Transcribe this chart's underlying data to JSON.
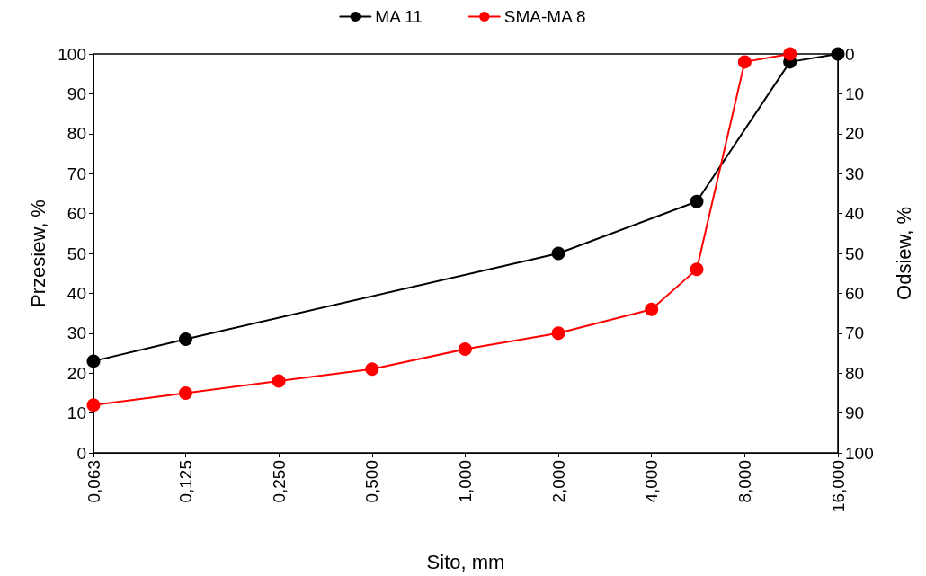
{
  "chart_data": {
    "type": "line",
    "xlabel": "Sito, mm",
    "ylabel": "Przesiew, %",
    "y2label": "Odsiew, %",
    "log": "x",
    "xlim": [
      0.063,
      16
    ],
    "xticks": [
      {
        "value": 0.063,
        "label": "0,063"
      },
      {
        "value": 0.125,
        "label": "0,125"
      },
      {
        "value": 0.25,
        "label": "0,250"
      },
      {
        "value": 0.5,
        "label": "0,500"
      },
      {
        "value": 1,
        "label": "1,000"
      },
      {
        "value": 2,
        "label": "2,000"
      },
      {
        "value": 4,
        "label": "4,000"
      },
      {
        "value": 8,
        "label": "8,000"
      },
      {
        "value": 16,
        "label": "16,000"
      }
    ],
    "ylim": [
      0,
      100
    ],
    "yticks": [
      0,
      10,
      20,
      30,
      40,
      50,
      60,
      70,
      80,
      90,
      100
    ],
    "y2lim": [
      100,
      0
    ],
    "y2ticks": [
      0,
      10,
      20,
      30,
      40,
      50,
      60,
      70,
      80,
      90,
      100
    ],
    "grid": false,
    "legend": "top",
    "marker": "circle",
    "line_style": "solid",
    "series": [
      {
        "name": "MA 11",
        "color": "#000000",
        "x": [
          0.063,
          0.125,
          2,
          5.6,
          11.2,
          16
        ],
        "values": [
          23,
          28.5,
          50,
          63,
          98,
          100
        ]
      },
      {
        "name": "SMA-MA 8",
        "color": "#ff0000",
        "x": [
          0.063,
          0.125,
          0.25,
          0.5,
          1,
          2,
          4,
          5.6,
          8,
          11.2
        ],
        "values": [
          12,
          15,
          18,
          21,
          26,
          30,
          36,
          46,
          98,
          100
        ]
      }
    ]
  }
}
